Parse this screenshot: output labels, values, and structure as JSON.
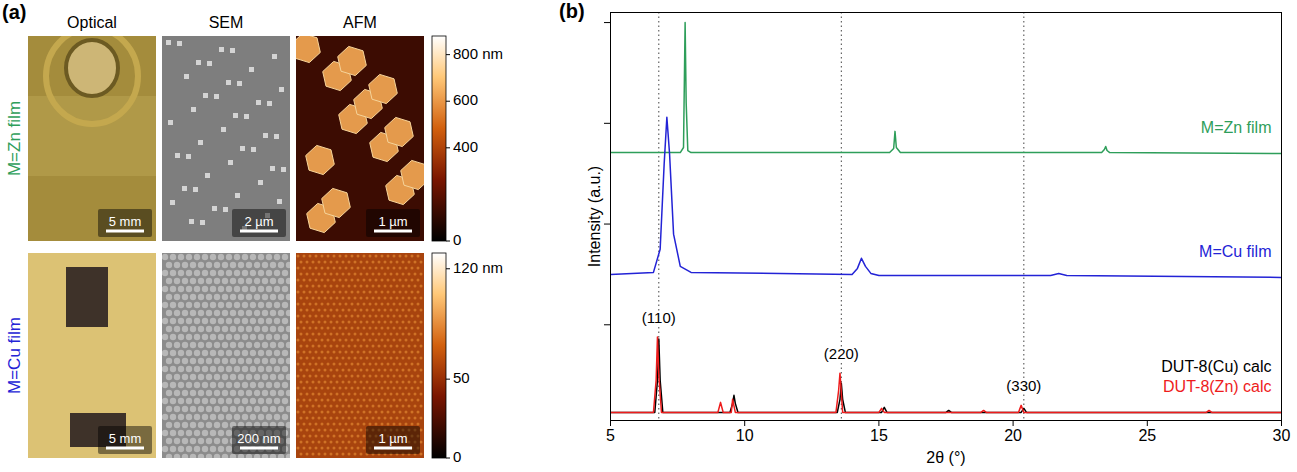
{
  "panel_a": {
    "label": "(a)",
    "columns": [
      "Optical",
      "SEM",
      "AFM"
    ],
    "rows": [
      {
        "label": "M=Zn film",
        "color": "#2e9e5a",
        "scale_bars": [
          "5 mm",
          "2 µm",
          "1 µm"
        ],
        "colorbar": {
          "range": [
            0,
            880
          ],
          "ticks": [
            {
              "value": 800,
              "label": "800 nm"
            },
            600,
            400,
            0
          ]
        }
      },
      {
        "label": "M=Cu film",
        "color": "#2323d6",
        "scale_bars": [
          "5 mm",
          "200 nm",
          "1 µm"
        ],
        "colorbar": {
          "range": [
            0,
            130
          ],
          "ticks": [
            {
              "value": 120,
              "label": "120 nm"
            },
            50,
            0
          ]
        }
      }
    ]
  },
  "chart_data": {
    "type": "line",
    "panel_label": "(b)",
    "x_label": "2θ (°)",
    "y_label": "Intensity (a.u.)",
    "xlim": [
      5,
      30
    ],
    "xticks": [
      5,
      10,
      15,
      20,
      25,
      30
    ],
    "ylim": [
      0.05,
      4.1
    ],
    "yticks": [
      1,
      2,
      3,
      4
    ],
    "tick_labels": "x",
    "reference_lines": [
      {
        "x": 6.8,
        "label": "(110)"
      },
      {
        "x": 13.6,
        "label": "(220)"
      },
      {
        "x": 20.4,
        "label": "(330)"
      }
    ],
    "series": [
      {
        "name": "M=Zn film",
        "color": "#2e9e5a",
        "x": [
          5,
          7.6,
          7.72,
          7.78,
          7.82,
          7.88,
          8.0,
          15.4,
          15.55,
          15.6,
          15.65,
          15.8,
          23.3,
          23.4,
          23.45,
          23.5,
          23.6,
          30
        ],
        "values": [
          2.71,
          2.71,
          2.76,
          4.0,
          3.2,
          2.73,
          2.71,
          2.71,
          2.75,
          2.92,
          2.76,
          2.71,
          2.71,
          2.74,
          2.77,
          2.73,
          2.71,
          2.7
        ]
      },
      {
        "name": "M=Cu film",
        "color": "#2323d6",
        "x": [
          5,
          6.6,
          6.85,
          7.0,
          7.1,
          7.2,
          7.35,
          7.6,
          8.0,
          14.0,
          14.2,
          14.35,
          14.5,
          14.7,
          15.0,
          21.4,
          21.7,
          22.0,
          30
        ],
        "values": [
          1.5,
          1.52,
          1.75,
          2.6,
          3.06,
          2.7,
          1.9,
          1.58,
          1.52,
          1.5,
          1.56,
          1.66,
          1.58,
          1.51,
          1.49,
          1.49,
          1.51,
          1.49,
          1.47
        ]
      },
      {
        "name": "DUT-8(Cu) calc",
        "color": "#000000",
        "x": [
          5,
          6.65,
          6.75,
          6.8,
          6.85,
          6.95,
          9.45,
          9.55,
          9.6,
          9.65,
          9.75,
          13.45,
          13.55,
          13.6,
          13.65,
          13.75,
          15.1,
          15.2,
          15.3,
          17.5,
          17.6,
          17.7,
          20.3,
          20.4,
          20.5,
          30
        ],
        "values": [
          0.13,
          0.13,
          0.45,
          0.86,
          0.45,
          0.13,
          0.13,
          0.22,
          0.3,
          0.22,
          0.13,
          0.13,
          0.26,
          0.42,
          0.26,
          0.13,
          0.13,
          0.18,
          0.13,
          0.13,
          0.15,
          0.13,
          0.13,
          0.17,
          0.13,
          0.13
        ]
      },
      {
        "name": "DUT-8(Zn) calc",
        "color": "#ee1c1c",
        "x": [
          5,
          6.6,
          6.7,
          6.75,
          6.8,
          6.9,
          9.0,
          9.1,
          9.2,
          9.5,
          9.55,
          9.65,
          13.4,
          13.5,
          13.55,
          13.65,
          15.0,
          15.1,
          15.2,
          18.8,
          18.9,
          19.0,
          20.2,
          20.3,
          20.4,
          27.2,
          27.3,
          27.4,
          30
        ],
        "values": [
          0.13,
          0.13,
          0.45,
          0.88,
          0.5,
          0.13,
          0.13,
          0.23,
          0.13,
          0.13,
          0.26,
          0.13,
          0.13,
          0.35,
          0.52,
          0.13,
          0.13,
          0.17,
          0.13,
          0.13,
          0.15,
          0.13,
          0.13,
          0.2,
          0.13,
          0.13,
          0.15,
          0.13,
          0.13
        ]
      }
    ]
  }
}
